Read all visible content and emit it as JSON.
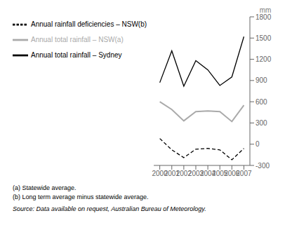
{
  "chart_data": {
    "type": "line",
    "x": [
      2000,
      2001,
      2002,
      2003,
      2004,
      2005,
      2006,
      2007
    ],
    "series": [
      {
        "name": "Annual total rainfall – Sydney",
        "color": "#000000",
        "values": [
          870,
          1320,
          820,
          1180,
          1050,
          830,
          950,
          1520
        ],
        "line_style": "solid"
      },
      {
        "name": "Annual total rainfall – NSW(a)",
        "color": "#aaaaaa",
        "values": [
          600,
          490,
          330,
          460,
          470,
          460,
          320,
          550
        ],
        "line_style": "solid"
      },
      {
        "name": "Annual rainfall deficiencies – NSW(b)",
        "color": "#000000",
        "values": [
          80,
          -80,
          -190,
          -70,
          -60,
          -80,
          -220,
          -60
        ],
        "line_style": "dashed"
      }
    ],
    "xlim": [
      1999.5,
      2007.5
    ],
    "xticks": [
      2000,
      2001,
      2002,
      2003,
      2004,
      2005,
      2006,
      2007
    ],
    "ylim": [
      -300,
      1800
    ],
    "yticks": [
      -300,
      0,
      300,
      600,
      900,
      1200,
      1500,
      1800
    ],
    "ylabel": "mm",
    "grid": false,
    "legend": "top",
    "annotations": [
      "(a) Statewide average.",
      "(b) Long term average minus statewide average.",
      "Source: Data available on request, Australian Bureau of Meteorology."
    ]
  }
}
